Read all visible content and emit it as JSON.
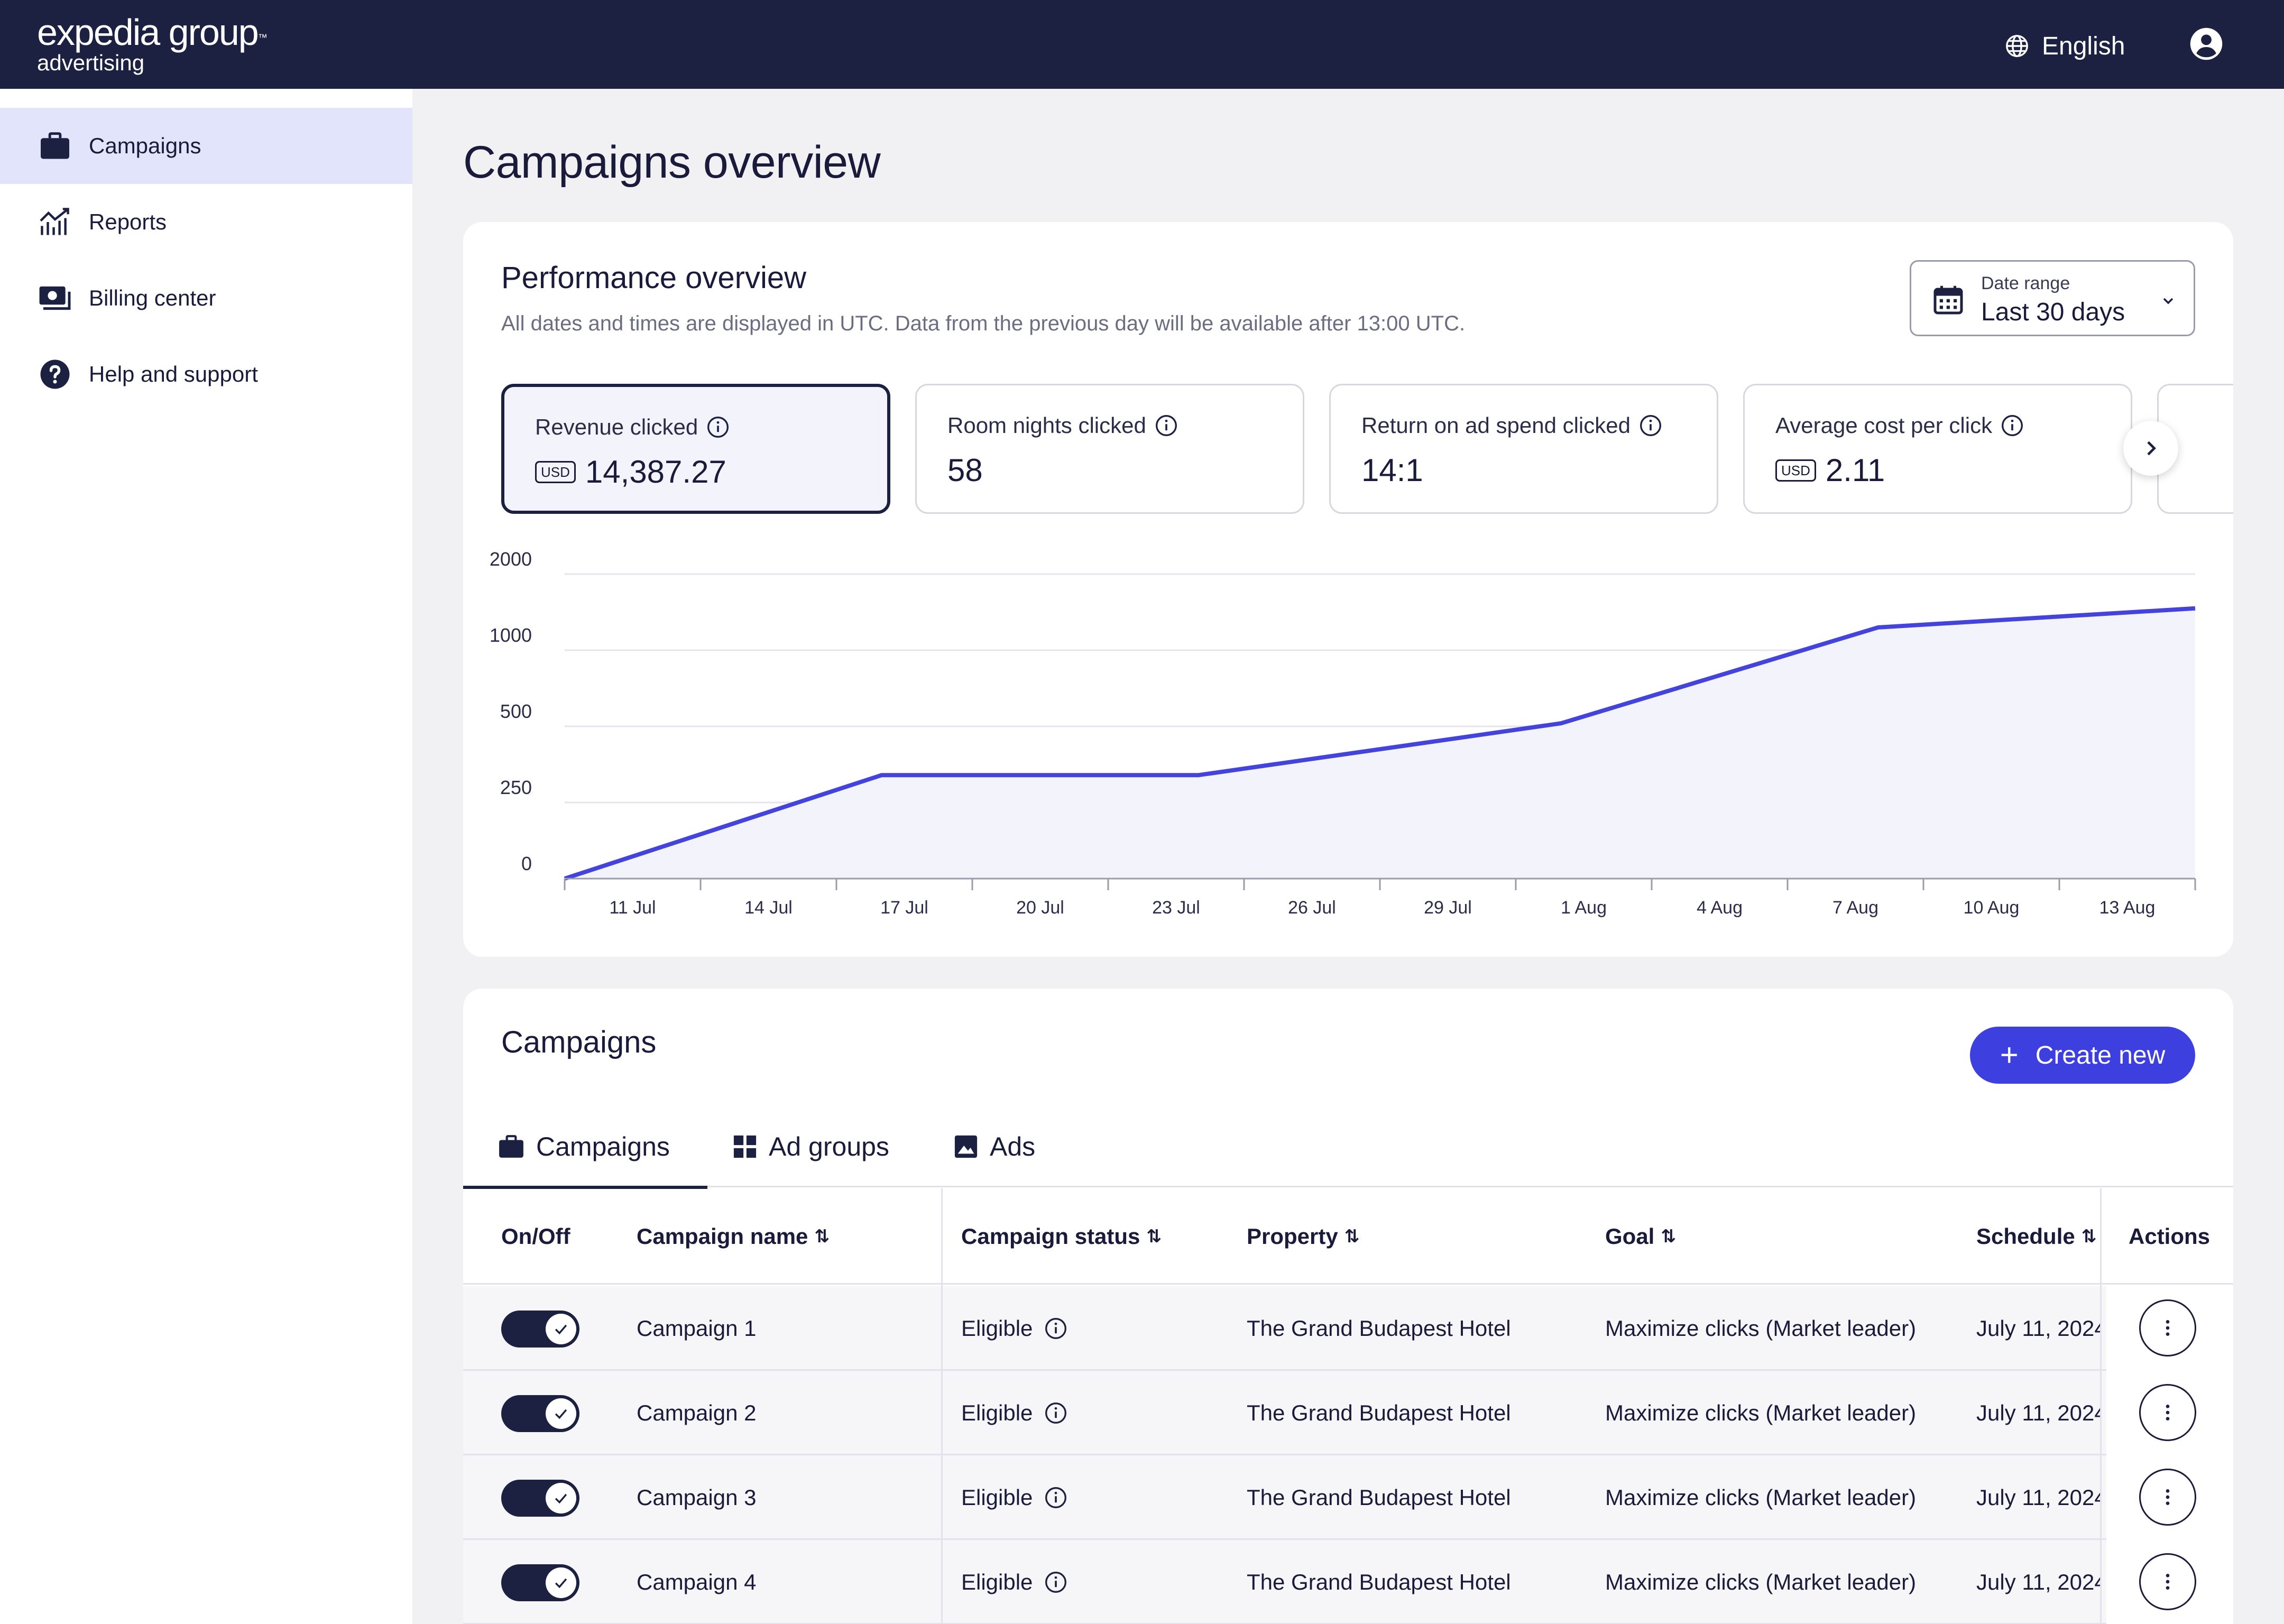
{
  "brand": {
    "line1": "expedia group",
    "tm": "™",
    "line2": "advertising"
  },
  "header": {
    "language": "English"
  },
  "sidebar": {
    "items": [
      {
        "label": "Campaigns",
        "icon": "briefcase-icon",
        "active": true
      },
      {
        "label": "Reports",
        "icon": "chart-icon",
        "active": false
      },
      {
        "label": "Billing center",
        "icon": "billing-icon",
        "active": false
      },
      {
        "label": "Help and support",
        "icon": "help-icon",
        "active": false
      }
    ]
  },
  "page": {
    "title": "Campaigns overview"
  },
  "performance": {
    "title": "Performance overview",
    "subtitle": "All dates and times are displayed in UTC. Data from the previous day will be available after 13:00 UTC.",
    "date_range": {
      "label": "Date range",
      "value": "Last 30 days"
    },
    "metrics": [
      {
        "label": "Revenue clicked",
        "currency": "USD",
        "value": "14,387.27",
        "selected": true
      },
      {
        "label": "Room nights clicked",
        "currency": "",
        "value": "58",
        "selected": false
      },
      {
        "label": "Return on ad spend clicked",
        "currency": "",
        "value": "14:1",
        "selected": false
      },
      {
        "label": "Average cost per click",
        "currency": "USD",
        "value": "2.11",
        "selected": false
      }
    ]
  },
  "chart_data": {
    "type": "area",
    "y_ticks": [
      "0",
      "250",
      "500",
      "1000",
      "2000"
    ],
    "x_ticks": [
      "11 Jul",
      "14 Jul",
      "17 Jul",
      "20 Jul",
      "23 Jul",
      "26 Jul",
      "29 Jul",
      "1 Aug",
      "4 Aug",
      "7 Aug",
      "10 Aug",
      "13 Aug"
    ],
    "series": [
      {
        "x": [
          "10 Jul",
          "17 Jul",
          "24 Jul",
          "1 Aug",
          "8 Aug",
          "15 Aug"
        ],
        "values": [
          0,
          340,
          340,
          520,
          1300,
          1550
        ]
      }
    ],
    "color": "#4444dd",
    "fill": "#f3f3fc",
    "grid": true
  },
  "campaigns": {
    "title": "Campaigns",
    "create_label": "Create new",
    "tabs": [
      {
        "label": "Campaigns",
        "icon": "briefcase-icon",
        "active": true
      },
      {
        "label": "Ad groups",
        "icon": "grid-icon",
        "active": false
      },
      {
        "label": "Ads",
        "icon": "image-icon",
        "active": false
      }
    ],
    "columns": [
      "On/Off",
      "Campaign name",
      "Campaign status",
      "Property",
      "Goal",
      "Schedule",
      "Actions"
    ],
    "sort_glyph": "⇅",
    "rows": [
      {
        "on": true,
        "name": "Campaign 1",
        "status": "Eligible",
        "property": "The Grand Budapest Hotel",
        "goal": "Maximize clicks (Market leader)",
        "schedule": "July 11, 2024"
      },
      {
        "on": true,
        "name": "Campaign 2",
        "status": "Eligible",
        "property": "The Grand Budapest Hotel",
        "goal": "Maximize clicks (Market leader)",
        "schedule": "July 11, 2024"
      },
      {
        "on": true,
        "name": "Campaign 3",
        "status": "Eligible",
        "property": "The Grand Budapest Hotel",
        "goal": "Maximize clicks (Market leader)",
        "schedule": "July 11, 2024"
      },
      {
        "on": true,
        "name": "Campaign 4",
        "status": "Eligible",
        "property": "The Grand Budapest Hotel",
        "goal": "Maximize clicks (Market leader)",
        "schedule": "July 11, 2024"
      }
    ]
  }
}
